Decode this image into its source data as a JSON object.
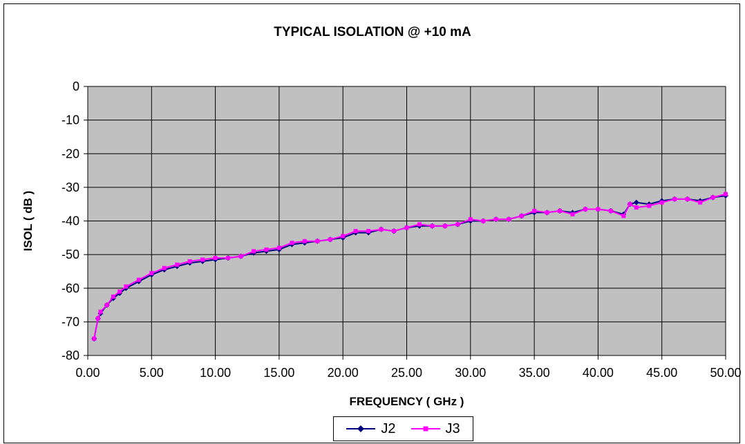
{
  "chart_data": {
    "type": "line",
    "title": "TYPICAL ISOLATION @ +10 mA",
    "xlabel": "FREQUENCY ( GHz )",
    "ylabel": "ISOL ( dB )",
    "xlim": [
      0,
      50
    ],
    "ylim": [
      -80,
      0
    ],
    "xticks": [
      "0.00",
      "5.00",
      "10.00",
      "15.00",
      "20.00",
      "25.00",
      "30.00",
      "35.00",
      "40.00",
      "45.00",
      "50.00"
    ],
    "yticks": [
      "0",
      "-10",
      "-20",
      "-30",
      "-40",
      "-50",
      "-60",
      "-70",
      "-80"
    ],
    "grid": true,
    "legend": "bottom",
    "plot_background": "#c0c0c0",
    "series": [
      {
        "name": "J2",
        "color": "#000080",
        "marker": "diamond",
        "x": [
          0.5,
          0.8,
          1.0,
          1.5,
          2.0,
          2.5,
          3.0,
          4.0,
          5.0,
          6.0,
          7.0,
          8.0,
          9.0,
          10.0,
          11.0,
          12.0,
          13.0,
          14.0,
          15.0,
          16.0,
          17.0,
          18.0,
          19.0,
          20.0,
          21.0,
          22.0,
          23.0,
          24.0,
          25.0,
          26.0,
          27.0,
          28.0,
          29.0,
          30.0,
          31.0,
          32.0,
          33.0,
          34.0,
          35.0,
          36.0,
          37.0,
          38.0,
          39.0,
          40.0,
          41.0,
          42.0,
          42.5,
          43.0,
          44.0,
          45.0,
          46.0,
          47.0,
          48.0,
          49.0,
          50.0
        ],
        "values": [
          -75,
          -69,
          -67.5,
          -65,
          -63,
          -61.5,
          -60,
          -58,
          -56,
          -54.5,
          -53.5,
          -52.5,
          -52,
          -51.5,
          -51,
          -50.5,
          -49.5,
          -49,
          -48.5,
          -47,
          -46.5,
          -46,
          -45.5,
          -45,
          -43.5,
          -43.5,
          -42.5,
          -43,
          -42,
          -41.5,
          -41.5,
          -41.5,
          -41,
          -40,
          -40,
          -39.5,
          -39.5,
          -38.5,
          -37.5,
          -37.5,
          -37,
          -37.5,
          -36.5,
          -36.5,
          -37,
          -38,
          -35,
          -34.5,
          -35,
          -34,
          -33.5,
          -33.5,
          -34,
          -33,
          -32.5
        ]
      },
      {
        "name": "J3",
        "color": "#ff00ff",
        "marker": "square",
        "x": [
          0.5,
          0.8,
          1.0,
          1.5,
          2.0,
          2.5,
          3.0,
          4.0,
          5.0,
          6.0,
          7.0,
          8.0,
          9.0,
          10.0,
          11.0,
          12.0,
          13.0,
          14.0,
          15.0,
          16.0,
          17.0,
          18.0,
          19.0,
          20.0,
          21.0,
          22.0,
          23.0,
          24.0,
          25.0,
          26.0,
          27.0,
          28.0,
          29.0,
          30.0,
          31.0,
          32.0,
          33.0,
          34.0,
          35.0,
          36.0,
          37.0,
          38.0,
          39.0,
          40.0,
          41.0,
          42.0,
          42.5,
          43.0,
          44.0,
          45.0,
          46.0,
          47.0,
          48.0,
          49.0,
          50.0
        ],
        "values": [
          -75,
          -69,
          -67,
          -65,
          -62.5,
          -61,
          -59.5,
          -57.5,
          -55.5,
          -54,
          -53,
          -52,
          -51.5,
          -51,
          -51,
          -50.5,
          -49,
          -48.5,
          -48,
          -46.5,
          -46,
          -46,
          -45.5,
          -44.5,
          -43,
          -43,
          -42.5,
          -43,
          -42,
          -41,
          -41.5,
          -41.5,
          -41,
          -39.5,
          -40,
          -39.5,
          -39.5,
          -38.5,
          -37,
          -37.5,
          -37,
          -38,
          -36.5,
          -36.5,
          -37,
          -38.5,
          -35,
          -36,
          -35.5,
          -34.5,
          -33.5,
          -33.5,
          -34.5,
          -33,
          -32
        ]
      }
    ]
  }
}
